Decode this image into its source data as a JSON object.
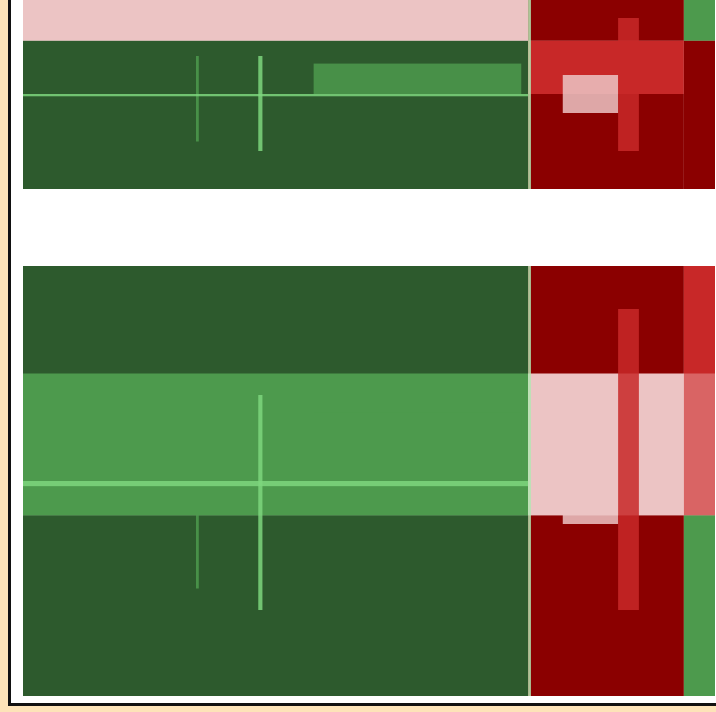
{
  "chart_data": {
    "type": "heatmap",
    "title": "",
    "xlabel": "",
    "ylabel": "",
    "color_scale": {
      "strong_positive": "#2d5a2d",
      "moderate_positive": "#4d9a4d",
      "weak_positive": "#7ed67e",
      "very_weak_positive": "#b3e8b3",
      "very_weak_negative": "#ecc4c4",
      "weak_negative": "#d96464",
      "moderate_negative": "#c82828",
      "strong_negative": "#8b0000"
    },
    "panels": [
      {
        "name": "",
        "cells": [
          {
            "row": 0,
            "col": 0,
            "level": "very_weak_negative"
          },
          {
            "row": 0,
            "col": 1,
            "level": "strong_negative"
          },
          {
            "row": 0,
            "col": 2,
            "level": "moderate_positive"
          },
          {
            "row": 1,
            "col": 0,
            "level": "strong_positive"
          },
          {
            "row": 1,
            "col": 1,
            "level": "moderate_negative"
          },
          {
            "row": 1,
            "col": 2,
            "level": "strong_negative"
          },
          {
            "row": 2,
            "col": 0,
            "level": "strong_positive"
          },
          {
            "row": 2,
            "col": 1,
            "level": "strong_negative"
          },
          {
            "row": 2,
            "col": 2,
            "level": "strong_negative"
          }
        ]
      },
      {
        "name": "",
        "cells": [
          {
            "row": 0,
            "col": 0,
            "level": "strong_positive"
          },
          {
            "row": 0,
            "col": 1,
            "level": "strong_negative"
          },
          {
            "row": 0,
            "col": 2,
            "level": "moderate_negative"
          },
          {
            "row": 1,
            "col": 0,
            "level": "moderate_positive"
          },
          {
            "row": 1,
            "col": 1,
            "level": "very_weak_negative"
          },
          {
            "row": 1,
            "col": 2,
            "level": "weak_negative"
          },
          {
            "row": 2,
            "col": 0,
            "level": "strong_positive"
          },
          {
            "row": 2,
            "col": 1,
            "level": "strong_negative"
          },
          {
            "row": 2,
            "col": 2,
            "level": "moderate_positive"
          }
        ]
      }
    ]
  }
}
